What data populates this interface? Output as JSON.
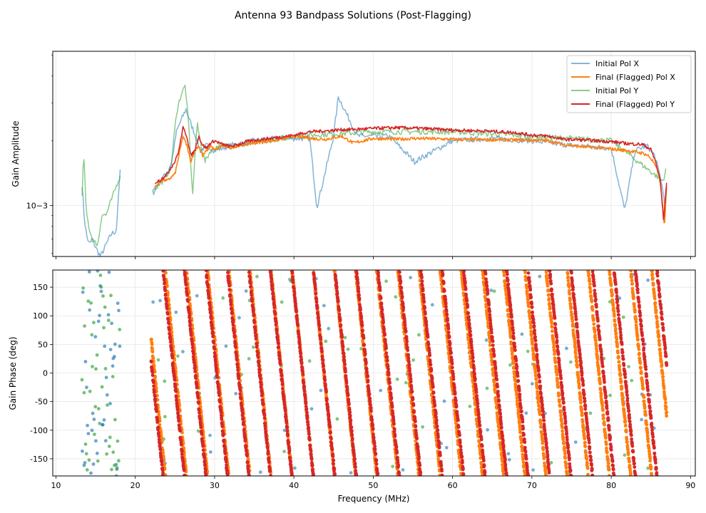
{
  "figure_title": "Antenna 93 Bandpass Solutions (Post-Flagging)",
  "colors": {
    "initial_x": "#1f77b4",
    "final_x": "#ff7f0e",
    "initial_y": "#2ca02c",
    "final_y": "#d62728",
    "grid": "#e6e6e6"
  },
  "chart_data": [
    {
      "type": "line",
      "title": "",
      "xlabel": "",
      "ylabel": "Gain Amplitude",
      "yscale": "log",
      "xlim": [
        9.6,
        90.6
      ],
      "ylim": [
        0.00058,
        0.0052
      ],
      "yticks": [
        {
          "value": 0.001,
          "label": "10−3"
        }
      ],
      "legend_location": "upper right",
      "legend": [
        "Initial Pol X",
        "Final (Flagged) Pol X",
        "Initial Pol Y",
        "Final (Flagged) Pol Y"
      ],
      "series": [
        {
          "name": "Initial Pol X",
          "role": "initial_x",
          "alpha": 0.55,
          "x": [
            13.3,
            13.6,
            13.9,
            14.2,
            14.6,
            15.0,
            15.6,
            16.0,
            16.5,
            17.0,
            17.6,
            18.1,
            22.3,
            22.8,
            23.4,
            24.0,
            24.6,
            25.2,
            25.8,
            26.4,
            27.0,
            27.6,
            28.2,
            29.0,
            30.0,
            32.0,
            35.0,
            38.0,
            42.0,
            42.9,
            45.0,
            45.6,
            48.0,
            52.0,
            55.2,
            60.0,
            65.0,
            70.0,
            75.0,
            80.0,
            81.7,
            83.0,
            84.5,
            85.5,
            86.3,
            86.8,
            87.0
          ],
          "y": [
            0.00125,
            0.00085,
            0.00072,
            0.00066,
            0.0007,
            0.00064,
            0.00058,
            0.00062,
            0.00068,
            0.00074,
            0.00076,
            0.00145,
            0.00115,
            0.00125,
            0.00135,
            0.0014,
            0.0016,
            0.0022,
            0.0025,
            0.0028,
            0.0024,
            0.0021,
            0.0018,
            0.0019,
            0.0018,
            0.0019,
            0.002,
            0.00205,
            0.00205,
            0.00098,
            0.0021,
            0.0032,
            0.0021,
            0.0021,
            0.0016,
            0.002,
            0.00205,
            0.002,
            0.0019,
            0.00185,
            0.00095,
            0.0018,
            0.0019,
            0.0017,
            0.0013,
            0.001,
            0.0015
          ]
        },
        {
          "name": "Final (Flagged) Pol X",
          "role": "final_x",
          "alpha": 1,
          "x": [
            22.5,
            23.0,
            23.5,
            24.0,
            24.5,
            25.0,
            25.5,
            26.0,
            26.5,
            27.0,
            27.5,
            28.0,
            28.5,
            29.0,
            29.5,
            30.0,
            31.0,
            32.0,
            33.0,
            35.0,
            38.0,
            40.0,
            42.0,
            44.0,
            46.0,
            47.5,
            50.0,
            53.0,
            55.0,
            58.0,
            62.0,
            66.0,
            70.0,
            72.0,
            74.0,
            76.0,
            78.0,
            80.0,
            82.0,
            84.0,
            84.7,
            85.3,
            86.0,
            86.4,
            86.7,
            87.0
          ],
          "y": [
            0.00122,
            0.00128,
            0.00132,
            0.0013,
            0.00135,
            0.0014,
            0.0017,
            0.0021,
            0.0019,
            0.0016,
            0.0018,
            0.0019,
            0.0017,
            0.0018,
            0.0019,
            0.0018,
            0.0019,
            0.00185,
            0.0019,
            0.00195,
            0.00202,
            0.0021,
            0.00205,
            0.00203,
            0.0021,
            0.00195,
            0.00205,
            0.00203,
            0.00205,
            0.00204,
            0.00202,
            0.00202,
            0.00201,
            0.002,
            0.00192,
            0.00188,
            0.00186,
            0.00183,
            0.0018,
            0.00175,
            0.0017,
            0.0016,
            0.0014,
            0.0011,
            0.00078,
            0.00125
          ]
        },
        {
          "name": "Initial Pol Y",
          "role": "initial_y",
          "alpha": 0.55,
          "x": [
            13.3,
            13.5,
            13.8,
            14.2,
            14.7,
            15.3,
            15.8,
            16.3,
            18.0,
            22.5,
            23.5,
            24.5,
            25.2,
            25.8,
            26.3,
            26.8,
            27.2,
            27.8,
            28.3,
            28.8,
            29.5,
            30.5,
            33.0,
            40.0,
            50.0,
            60.0,
            70.0,
            80.0,
            86.5,
            87.0
          ],
          "y": [
            0.0011,
            0.0018,
            0.00095,
            0.00078,
            0.00068,
            0.00066,
            0.00092,
            0.0009,
            0.00135,
            0.0012,
            0.0013,
            0.0015,
            0.0027,
            0.0033,
            0.0036,
            0.0022,
            0.0011,
            0.0024,
            0.0019,
            0.0016,
            0.0018,
            0.0019,
            0.0019,
            0.0021,
            0.0022,
            0.0022,
            0.0021,
            0.002,
            0.0013,
            0.0015
          ]
        },
        {
          "name": "Final (Flagged) Pol Y",
          "role": "final_y",
          "alpha": 1,
          "x": [
            22.5,
            23.0,
            23.5,
            24.0,
            24.5,
            25.0,
            25.5,
            26.0,
            26.5,
            27.0,
            27.5,
            28.0,
            28.5,
            29.0,
            29.5,
            30.0,
            31.0,
            32.0,
            33.0,
            34.0,
            36.0,
            38.0,
            40.0,
            42.0,
            44.0,
            46.0,
            48.0,
            50.0,
            53.0,
            56.0,
            60.0,
            64.0,
            68.0,
            70.0,
            72.0,
            74.0,
            76.0,
            78.0,
            80.0,
            82.0,
            84.0,
            85.0,
            85.6,
            86.2,
            86.6,
            87.0
          ],
          "y": [
            0.00128,
            0.0013,
            0.00135,
            0.0014,
            0.0015,
            0.0016,
            0.0018,
            0.0023,
            0.0021,
            0.0017,
            0.0018,
            0.0021,
            0.0019,
            0.00185,
            0.00195,
            0.002,
            0.00192,
            0.00188,
            0.00192,
            0.00198,
            0.00203,
            0.00207,
            0.00212,
            0.0022,
            0.00222,
            0.00225,
            0.00226,
            0.00228,
            0.0023,
            0.00228,
            0.00224,
            0.00222,
            0.00218,
            0.00212,
            0.0021,
            0.00203,
            0.00202,
            0.002,
            0.00198,
            0.00194,
            0.00192,
            0.00182,
            0.0016,
            0.0013,
            0.00085,
            0.0013
          ]
        }
      ]
    },
    {
      "type": "scatter",
      "title": "",
      "xlabel": "Frequency (MHz)",
      "ylabel": "Gain Phase (deg)",
      "xlim": [
        9.6,
        90.6
      ],
      "ylim": [
        -180,
        180
      ],
      "xticks": [
        10,
        20,
        30,
        40,
        50,
        60,
        70,
        80,
        90
      ],
      "yticks": [
        -150,
        -100,
        -50,
        0,
        50,
        100,
        150
      ],
      "note": "Phase wraps from +180 to -180 deg along the band (steep delay slope); Final Pol X and Y form diagonal wrapped stripes",
      "series": [
        {
          "name": "Initial Pol X",
          "role": "initial_x",
          "x_range": [
            13.3,
            87.0
          ],
          "sparse_region": [
            13.3,
            18.1
          ]
        },
        {
          "name": "Final (Flagged) Pol X",
          "role": "final_x",
          "x_range": [
            22.0,
            87.0
          ],
          "slope_deg_per_mhz": -135,
          "phase_at_start": 60
        },
        {
          "name": "Initial Pol Y",
          "role": "initial_y",
          "x_range": [
            13.3,
            87.0
          ],
          "sparse_region": [
            13.3,
            18.1
          ]
        },
        {
          "name": "Final (Flagged) Pol Y",
          "role": "final_y",
          "x_range": [
            22.0,
            87.0
          ],
          "slope_deg_per_mhz": -133,
          "phase_at_start": 20
        }
      ]
    }
  ]
}
